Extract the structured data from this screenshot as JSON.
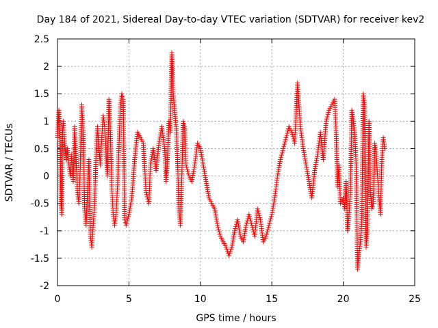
{
  "chart_data": {
    "type": "scatter",
    "title": "Day 184 of 2021, Sidereal Day-to-day VTEC variation (SDTVAR) for receiver kev2",
    "xlabel": "GPS time / hours",
    "ylabel": "SDTVAR / TECUs",
    "xlim": [
      0,
      25
    ],
    "ylim": [
      -2,
      2.5
    ],
    "xticks": [
      0,
      5,
      10,
      15,
      20,
      25
    ],
    "yticks": [
      -2,
      -1.5,
      -1,
      -0.5,
      0,
      0.5,
      1,
      1.5,
      2,
      2.5
    ],
    "xtick_labels": [
      "0",
      "5",
      "10",
      "15",
      "20",
      "25"
    ],
    "ytick_labels": [
      "-2",
      "-1.5",
      "-1",
      "-0.5",
      "0",
      "0.5",
      "1",
      "1.5",
      "2",
      "2.5"
    ],
    "grid": true,
    "marker": "plus",
    "color": "#ff0000",
    "series": [
      {
        "name": "SDTVAR",
        "points": [
          [
            0.0,
            0.7
          ],
          [
            0.1,
            1.2
          ],
          [
            0.15,
            0.9
          ],
          [
            0.2,
            0.3
          ],
          [
            0.25,
            -0.5
          ],
          [
            0.3,
            -0.7
          ],
          [
            0.35,
            0.8
          ],
          [
            0.4,
            1.0
          ],
          [
            0.5,
            0.6
          ],
          [
            0.6,
            0.3
          ],
          [
            0.7,
            0.5
          ],
          [
            0.8,
            0.2
          ],
          [
            0.9,
            0.0
          ],
          [
            1.0,
            0.4
          ],
          [
            1.1,
            -0.1
          ],
          [
            1.2,
            0.9
          ],
          [
            1.3,
            0.3
          ],
          [
            1.4,
            -0.3
          ],
          [
            1.5,
            -0.5
          ],
          [
            1.6,
            0.2
          ],
          [
            1.7,
            1.3
          ],
          [
            1.8,
            0.8
          ],
          [
            1.9,
            -0.6
          ],
          [
            2.0,
            -0.9
          ],
          [
            2.1,
            -0.3
          ],
          [
            2.2,
            0.3
          ],
          [
            2.3,
            -1.1
          ],
          [
            2.4,
            -1.3
          ],
          [
            2.5,
            -0.9
          ],
          [
            2.6,
            -0.5
          ],
          [
            2.7,
            0.4
          ],
          [
            2.8,
            0.9
          ],
          [
            2.9,
            0.5
          ],
          [
            3.0,
            0.2
          ],
          [
            3.1,
            0.7
          ],
          [
            3.2,
            1.1
          ],
          [
            3.3,
            0.9
          ],
          [
            3.4,
            0.4
          ],
          [
            3.5,
            0.0
          ],
          [
            3.6,
            1.4
          ],
          [
            3.7,
            0.8
          ],
          [
            3.8,
            -0.2
          ],
          [
            3.9,
            -0.7
          ],
          [
            4.0,
            -0.9
          ],
          [
            4.1,
            -0.7
          ],
          [
            4.2,
            -0.2
          ],
          [
            4.3,
            0.5
          ],
          [
            4.4,
            1.3
          ],
          [
            4.5,
            1.5
          ],
          [
            4.6,
            1.4
          ],
          [
            4.7,
            -0.8
          ],
          [
            4.8,
            -0.9
          ],
          [
            5.0,
            -0.7
          ],
          [
            5.2,
            -0.4
          ],
          [
            5.4,
            0.3
          ],
          [
            5.6,
            0.8
          ],
          [
            5.8,
            0.7
          ],
          [
            6.0,
            0.6
          ],
          [
            6.2,
            -0.3
          ],
          [
            6.4,
            -0.5
          ],
          [
            6.5,
            0.2
          ],
          [
            6.7,
            0.5
          ],
          [
            6.9,
            0.1
          ],
          [
            7.1,
            0.6
          ],
          [
            7.3,
            0.9
          ],
          [
            7.5,
            0.5
          ],
          [
            7.6,
            -0.1
          ],
          [
            7.7,
            0.3
          ],
          [
            7.8,
            1.0
          ],
          [
            7.9,
            0.8
          ],
          [
            8.0,
            2.25
          ],
          [
            8.05,
            2.0
          ],
          [
            8.1,
            1.5
          ],
          [
            8.2,
            1.2
          ],
          [
            8.3,
            0.9
          ],
          [
            8.4,
            0.3
          ],
          [
            8.5,
            -0.6
          ],
          [
            8.6,
            -0.9
          ],
          [
            8.7,
            0.0
          ],
          [
            8.8,
            1.0
          ],
          [
            8.9,
            0.9
          ],
          [
            9.0,
            0.2
          ],
          [
            9.2,
            0.0
          ],
          [
            9.4,
            -0.1
          ],
          [
            9.6,
            0.2
          ],
          [
            9.8,
            0.6
          ],
          [
            10.0,
            0.5
          ],
          [
            10.2,
            0.2
          ],
          [
            10.4,
            -0.1
          ],
          [
            10.6,
            -0.4
          ],
          [
            10.8,
            -0.5
          ],
          [
            11.0,
            -0.6
          ],
          [
            11.2,
            -0.9
          ],
          [
            11.4,
            -1.1
          ],
          [
            11.6,
            -1.2
          ],
          [
            11.8,
            -1.3
          ],
          [
            12.0,
            -1.45
          ],
          [
            12.2,
            -1.3
          ],
          [
            12.4,
            -1.0
          ],
          [
            12.6,
            -0.8
          ],
          [
            12.8,
            -1.1
          ],
          [
            13.0,
            -1.2
          ],
          [
            13.2,
            -0.9
          ],
          [
            13.4,
            -0.7
          ],
          [
            13.6,
            -0.9
          ],
          [
            13.8,
            -1.1
          ],
          [
            14.0,
            -0.6
          ],
          [
            14.2,
            -0.8
          ],
          [
            14.4,
            -1.2
          ],
          [
            14.6,
            -1.1
          ],
          [
            14.8,
            -0.9
          ],
          [
            15.0,
            -0.7
          ],
          [
            15.2,
            -0.4
          ],
          [
            15.4,
            0.0
          ],
          [
            15.6,
            0.3
          ],
          [
            15.8,
            0.5
          ],
          [
            16.0,
            0.7
          ],
          [
            16.2,
            0.9
          ],
          [
            16.4,
            0.8
          ],
          [
            16.6,
            0.6
          ],
          [
            16.8,
            1.7
          ],
          [
            16.9,
            1.3
          ],
          [
            17.0,
            0.9
          ],
          [
            17.2,
            0.5
          ],
          [
            17.4,
            0.2
          ],
          [
            17.6,
            -0.1
          ],
          [
            17.8,
            -0.4
          ],
          [
            18.0,
            0.1
          ],
          [
            18.2,
            0.4
          ],
          [
            18.4,
            0.8
          ],
          [
            18.6,
            0.3
          ],
          [
            18.8,
            1.0
          ],
          [
            19.0,
            1.2
          ],
          [
            19.2,
            1.3
          ],
          [
            19.4,
            1.4
          ],
          [
            19.5,
            0.8
          ],
          [
            19.6,
            -0.2
          ],
          [
            19.7,
            0.2
          ],
          [
            19.8,
            -0.5
          ],
          [
            20.0,
            -0.4
          ],
          [
            20.1,
            -0.6
          ],
          [
            20.2,
            -0.1
          ],
          [
            20.3,
            -1.0
          ],
          [
            20.4,
            -0.7
          ],
          [
            20.5,
            -0.3
          ],
          [
            20.6,
            1.2
          ],
          [
            20.8,
            0.8
          ],
          [
            20.9,
            0.2
          ],
          [
            21.0,
            -1.7
          ],
          [
            21.1,
            -1.4
          ],
          [
            21.2,
            -1.2
          ],
          [
            21.3,
            -0.8
          ],
          [
            21.4,
            1.5
          ],
          [
            21.5,
            1.3
          ],
          [
            21.6,
            -1.3
          ],
          [
            21.7,
            -0.9
          ],
          [
            21.8,
            1.0
          ],
          [
            21.9,
            -0.3
          ],
          [
            22.0,
            -0.6
          ],
          [
            22.1,
            -0.5
          ],
          [
            22.2,
            0.6
          ],
          [
            22.3,
            0.4
          ],
          [
            22.4,
            0.0
          ],
          [
            22.5,
            -0.4
          ],
          [
            22.6,
            -0.7
          ],
          [
            22.7,
            0.3
          ],
          [
            22.8,
            0.7
          ],
          [
            22.9,
            0.5
          ]
        ]
      }
    ]
  }
}
